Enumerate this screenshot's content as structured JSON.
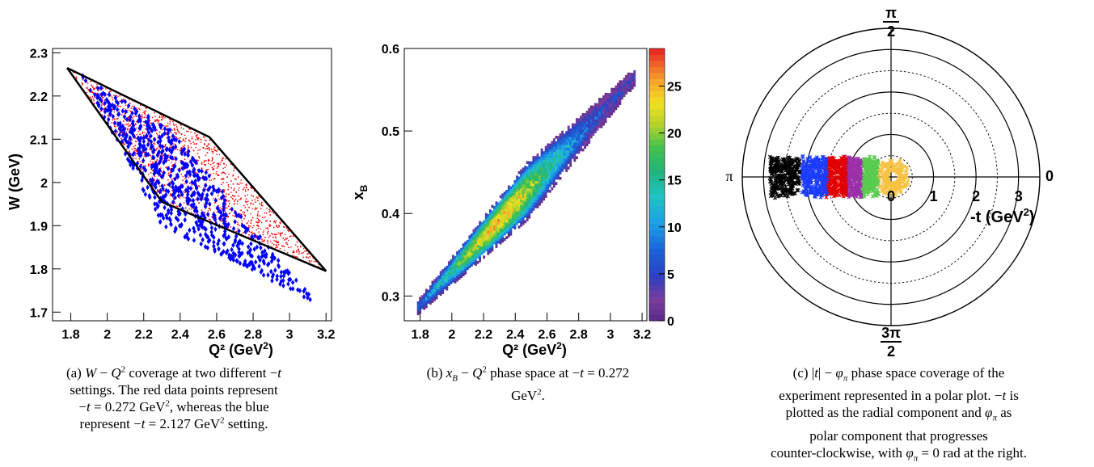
{
  "chart_data": [
    {
      "type": "scatter",
      "panel": "a",
      "xlabel": "Q²",
      "xlabel_unit": "(GeV",
      "xlabel_unit_sup": "2",
      "xlabel_unit_end": ")",
      "ylabel": "W (GeV)",
      "xlim": [
        1.7,
        3.23
      ],
      "ylim": [
        1.68,
        2.31
      ],
      "x_ticks": [
        "1.8",
        "2",
        "2.2",
        "2.4",
        "2.6",
        "2.8",
        "3",
        "3.2"
      ],
      "y_ticks": [
        "1.7",
        "1.8",
        "1.9",
        "2",
        "2.1",
        "2.2",
        "2.3"
      ],
      "series": [
        {
          "color": "#ff0000",
          "marker": "dot",
          "region": [
            [
              1.78,
              2.265
            ],
            [
              2.56,
              2.105
            ],
            [
              3.2,
              1.795
            ],
            [
              2.3,
              1.955
            ]
          ]
        },
        {
          "color": "#0000ff",
          "marker": "diamond",
          "region": [
            [
              1.85,
              2.255
            ],
            [
              2.35,
              2.12
            ],
            [
              3.15,
              1.72
            ],
            [
              2.3,
              1.9
            ]
          ]
        },
        {
          "color": "#000000",
          "type": "line",
          "x": [
            1.78,
            2.56,
            3.2,
            2.3,
            1.78
          ],
          "y": [
            2.265,
            2.105,
            1.795,
            1.955,
            2.265
          ]
        }
      ]
    },
    {
      "type": "heatmap",
      "panel": "b",
      "xlabel": "Q²",
      "xlabel_unit": "(GeV",
      "xlabel_unit_sup": "2",
      "xlabel_unit_end": ")",
      "ylabel": "x",
      "ylabel_sub": "B",
      "xlim": [
        1.7,
        3.23
      ],
      "ylim": [
        0.27,
        0.6
      ],
      "x_ticks": [
        "1.8",
        "2",
        "2.2",
        "2.4",
        "2.6",
        "2.8",
        "3",
        "3.2"
      ],
      "y_ticks": [
        "0.3",
        "0.4",
        "0.5",
        "0.6"
      ],
      "y_tick_values": [
        0.3,
        0.4,
        0.5,
        0.6
      ],
      "band": {
        "x": [
          1.78,
          3.15
        ],
        "y": [
          0.285,
          0.565
        ],
        "half_width_y": [
          0.008,
          0.035,
          0.01
        ]
      },
      "colorbar": {
        "min": 0,
        "max": 29,
        "ticks": [
          "0",
          "5",
          "10",
          "15",
          "20",
          "25"
        ],
        "tick_values": [
          0,
          5,
          10,
          15,
          20,
          25
        ]
      }
    },
    {
      "type": "scatter",
      "panel": "c",
      "coordinate_system": "polar",
      "rlim": [
        0,
        3.5
      ],
      "r_ticks": [
        "0",
        "1",
        "2",
        "3"
      ],
      "r_circles_solid": [
        1,
        2,
        3
      ],
      "r_circles_dashed": [
        0.5,
        1.5,
        2.5
      ],
      "angle_labels": {
        "top_num": "π",
        "top_den": "2",
        "left": "π",
        "right": "0",
        "bottom_num": "3π",
        "bottom_den": "2"
      },
      "radial_label": "-t (GeV",
      "radial_label_sup": "2",
      "radial_label_end": ")",
      "series": [
        {
          "color": "#f5c242",
          "r_center": 0.0,
          "r_spread": 0.35,
          "note": "ring"
        },
        {
          "color": "#5acb4f",
          "r_center": 0.5,
          "r_spread": 0.2
        },
        {
          "color": "#9b30a8",
          "r_center": 0.9,
          "r_spread": 0.2
        },
        {
          "color": "#e00000",
          "r_center": 1.3,
          "r_spread": 0.25
        },
        {
          "color": "#1a3cff",
          "r_center": 1.8,
          "r_spread": 0.3
        },
        {
          "color": "#000000",
          "r_center": 2.5,
          "r_spread": 0.35
        }
      ]
    }
  ],
  "captions": {
    "a": [
      "(a) W − Q² coverage at two different −t",
      "settings. The red data points represent",
      "−t = 0.272 GeV², whereas the blue",
      "represent −t = 2.127 GeV² setting."
    ],
    "b": [
      "(b) x_B − Q² phase space at −t = 0.272",
      "GeV²."
    ],
    "c": [
      "(c) |t| − φ_π phase space coverage of the",
      "experiment represented in a polar plot. −t is",
      "plotted as the radial component and φ_π as",
      "polar component that progresses",
      "counter-clockwise, with φ_π = 0 rad at the right."
    ]
  }
}
